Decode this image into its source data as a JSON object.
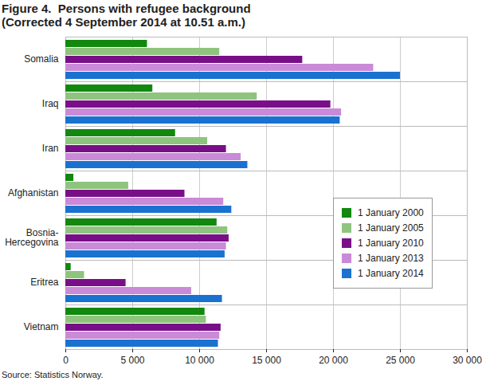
{
  "chart_data": {
    "type": "bar",
    "orientation": "horizontal",
    "title": "Figure 4.  Persons with refugee background",
    "subtitle": "(Corrected 4 September 2014 at 10.51 a.m.)",
    "source": "Source: Statistics Norway.",
    "categories": [
      "Somalia",
      "Iraq",
      "Iran",
      "Afghanistan",
      "Bosnia-Hercegovina",
      "Eritrea",
      "Vietnam"
    ],
    "series": [
      {
        "name": "1 January 2000",
        "color": "#12880f",
        "values": [
          6100,
          6500,
          8200,
          600,
          11300,
          400,
          10400
        ]
      },
      {
        "name": "1 January 2005",
        "color": "#8fc47f",
        "values": [
          11500,
          14300,
          10600,
          4700,
          12100,
          1400,
          10500
        ]
      },
      {
        "name": "1 January 2010",
        "color": "#790f88",
        "values": [
          17700,
          19800,
          12000,
          8900,
          12200,
          4500,
          11600
        ]
      },
      {
        "name": "1 January 2013",
        "color": "#c98ad8",
        "values": [
          23000,
          20600,
          13100,
          11800,
          12000,
          9400,
          11500
        ]
      },
      {
        "name": "1 January 2014",
        "color": "#1a72d0",
        "values": [
          25000,
          20500,
          13600,
          12400,
          11900,
          11700,
          11400
        ]
      }
    ],
    "xlim": [
      0,
      30000
    ],
    "xticks": [
      0,
      {
        "value": 5000,
        "label": "5 000"
      },
      {
        "value": 10000,
        "label": "10 000"
      },
      {
        "value": 15000,
        "label": "15 000"
      },
      {
        "value": 20000,
        "label": "20 000"
      },
      {
        "value": 25000,
        "label": "25 000"
      },
      {
        "value": 30000,
        "label": "30 000"
      }
    ],
    "grid": true,
    "legend": "right"
  }
}
